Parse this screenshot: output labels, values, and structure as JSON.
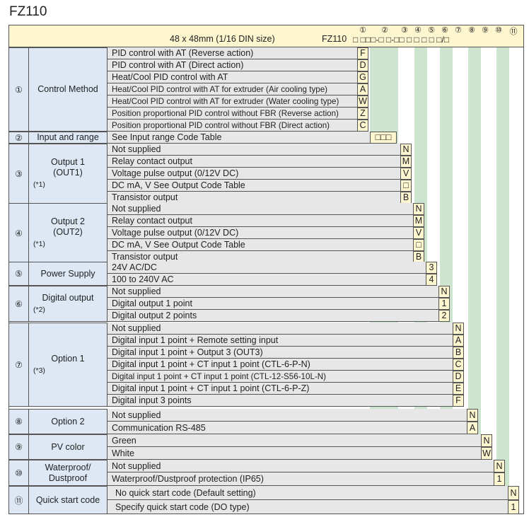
{
  "title": "FZ110",
  "header": {
    "size_text": "48 x 48mm (1/16 DIN size)",
    "model": "FZ110",
    "positions": [
      "①",
      "②",
      "③",
      "④",
      "⑤",
      "⑥",
      "⑦",
      "⑧",
      "⑨",
      "⑩",
      "⑪"
    ],
    "code_pattern": "□ □□□-□ □-□□ □ □ □ □ □/□"
  },
  "sections": [
    {
      "num": "①",
      "name": "Control Method",
      "note": "",
      "options": [
        {
          "label": "PID control with AT (Reverse action)",
          "code": "F"
        },
        {
          "label": "PID control with AT (Direct action)",
          "code": "D"
        },
        {
          "label": "Heat/Cool PID control with AT",
          "code": "G"
        },
        {
          "label": "Heat/Cool PID control with AT for extruder (Air cooling type)",
          "code": "A"
        },
        {
          "label": "Heat/Cool PID control with AT for extruder (Water cooling type)",
          "code": "W"
        },
        {
          "label": "Position proportional PID control without FBR (Reverse action)",
          "code": "Z"
        },
        {
          "label": "Position proportional PID control without FBR (Direct action)",
          "code": "C"
        }
      ]
    },
    {
      "num": "②",
      "name": "Input and range",
      "note": "",
      "options": [
        {
          "label": "See Input range Code Table",
          "code": "□□□"
        }
      ]
    },
    {
      "num": "③",
      "name": "Output 1\n(OUT1)",
      "note": "(*1)",
      "options": [
        {
          "label": "Not supplied",
          "code": "N"
        },
        {
          "label": "Relay contact output",
          "code": "M"
        },
        {
          "label": "Voltage pulse output (0/12V DC)",
          "code": "V"
        },
        {
          "label": "DC mA, V       See Output Code Table",
          "code": "□"
        },
        {
          "label": "Transistor output",
          "code": "B"
        }
      ]
    },
    {
      "num": "④",
      "name": "Output 2\n(OUT2)",
      "note": "(*1)",
      "options": [
        {
          "label": "Not supplied",
          "code": "N"
        },
        {
          "label": "Relay contact output",
          "code": "M"
        },
        {
          "label": "Voltage pulse output (0/12V DC)",
          "code": "V"
        },
        {
          "label": "DC mA, V       See Output Code Table",
          "code": "□"
        },
        {
          "label": "Transistor output",
          "code": "B"
        }
      ]
    },
    {
      "num": "⑤",
      "name": "Power Supply",
      "note": "",
      "options": [
        {
          "label": "24V AC/DC",
          "code": "3"
        },
        {
          "label": "100 to 240V AC",
          "code": "4"
        }
      ]
    },
    {
      "num": "⑥",
      "name": "Digital output",
      "note": "(*2)",
      "options": [
        {
          "label": "Not supplied",
          "code": "N"
        },
        {
          "label": "Digital output 1 point",
          "code": "1"
        },
        {
          "label": "Digital output 2 points",
          "code": "2"
        }
      ]
    },
    {
      "num": "⑦",
      "name": "Option 1",
      "note": "(*3)",
      "options": [
        {
          "label": "Not supplied",
          "code": "N"
        },
        {
          "label": "Digital input 1 point + Remote setting input",
          "code": "A"
        },
        {
          "label": "Digital input 1 point + Output 3 (OUT3)",
          "code": "B"
        },
        {
          "label": "Digital input 1 point + CT input 1 point (CTL-6-P-N)",
          "code": "C"
        },
        {
          "label": "Digital input 1 point + CT input 1 point (CTL-12-S56-10L-N)",
          "code": "D"
        },
        {
          "label": "Digital input 1 point + CT input 1 point (CTL-6-P-Z)",
          "code": "E"
        },
        {
          "label": "Digital input 3 points",
          "code": "F"
        }
      ]
    },
    {
      "num": "⑧",
      "name": "Option 2",
      "note": "",
      "options": [
        {
          "label": "Not supplied",
          "code": "N"
        },
        {
          "label": "Communication RS-485",
          "code": "A"
        }
      ]
    },
    {
      "num": "⑨",
      "name": "PV color",
      "note": "",
      "options": [
        {
          "label": "Green",
          "code": "N"
        },
        {
          "label": "White",
          "code": "W"
        }
      ]
    },
    {
      "num": "⑩",
      "name": "Waterproof/\nDustproof",
      "note": "",
      "options": [
        {
          "label": "Not supplied",
          "code": "N"
        },
        {
          "label": "Waterproof/Dustproof protection (IP65)",
          "code": "1"
        }
      ]
    },
    {
      "num": "⑪",
      "name": "Quick start code",
      "note": "",
      "options": [
        {
          "label": "No quick start code (Default setting)",
          "code": "N"
        },
        {
          "label": "Specify quick start code (DO type)",
          "code": "1"
        }
      ]
    }
  ],
  "colors": {
    "header_bg": "#fdf6cf",
    "name_bg": "#dde8f4",
    "row_bg": "#e7e7e7",
    "code_bg": "#fdf6cf",
    "column_green": "#cde4cf"
  }
}
